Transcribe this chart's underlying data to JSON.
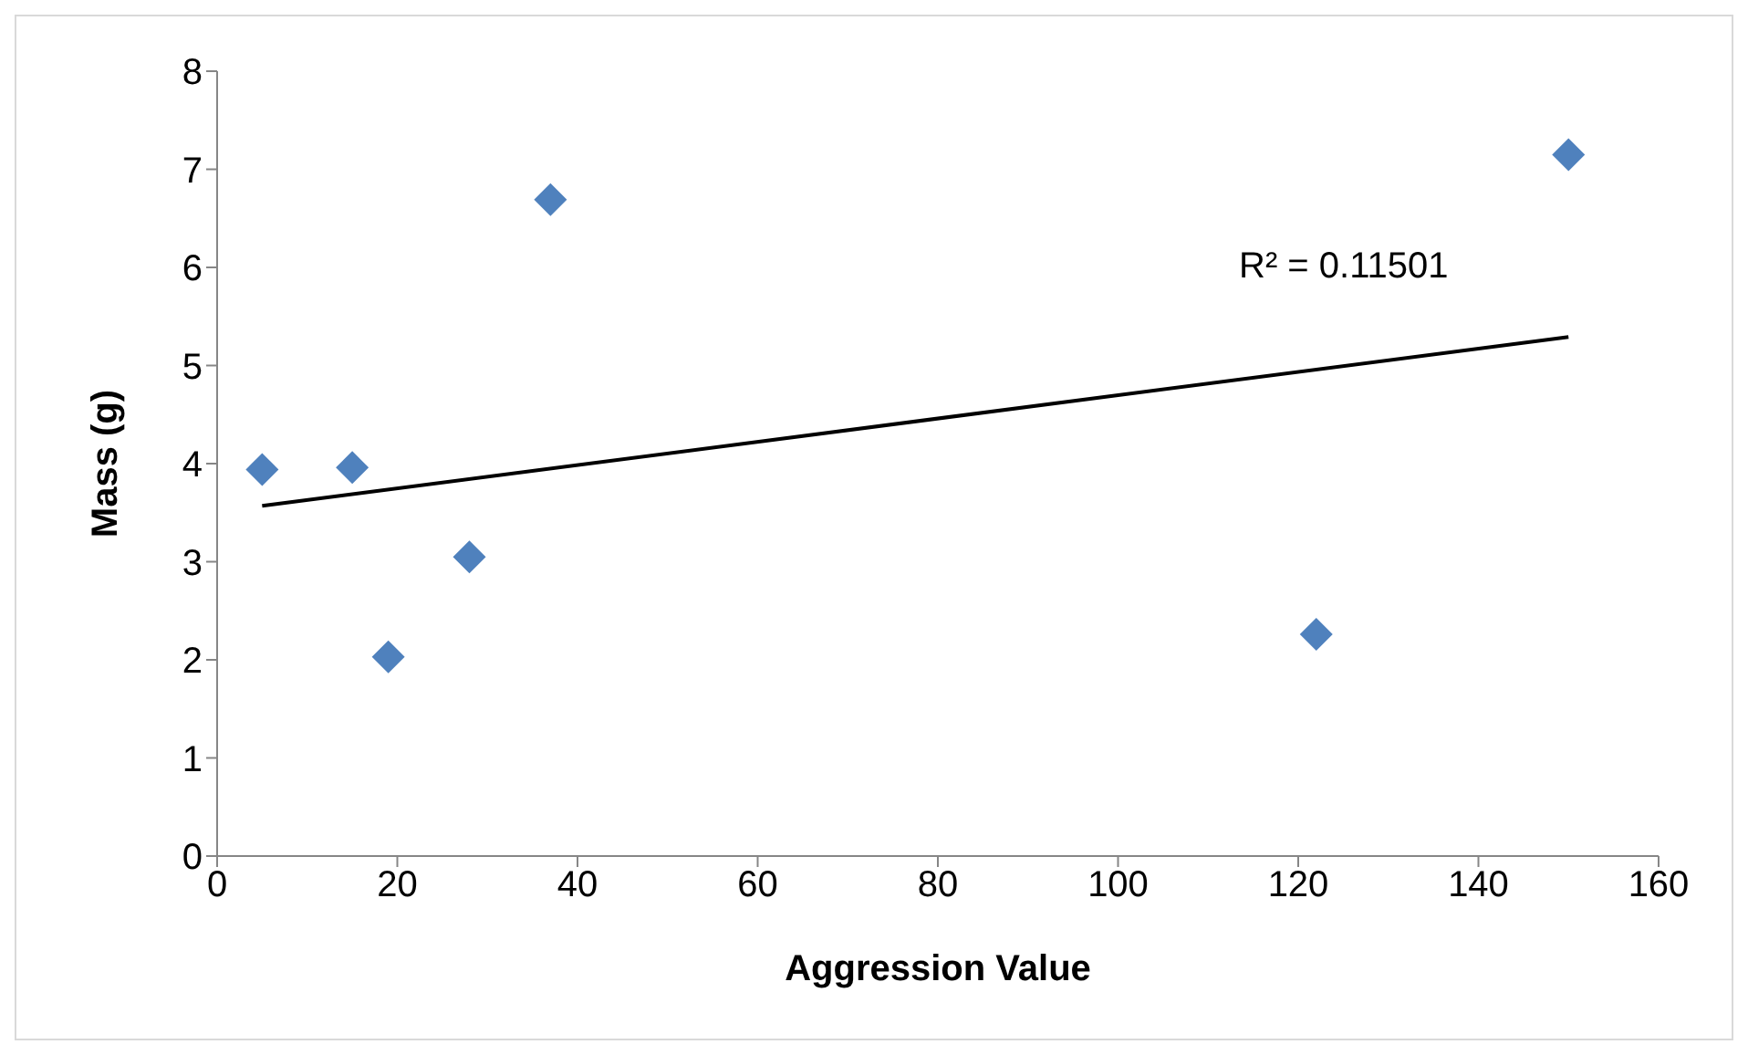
{
  "chart_data": {
    "type": "scatter",
    "xlabel": "Aggression Value",
    "ylabel": "Mass (g)",
    "xlim": [
      0,
      160
    ],
    "xticks": [
      0,
      20,
      40,
      60,
      80,
      100,
      120,
      140,
      160
    ],
    "ylim": [
      0,
      8
    ],
    "yticks": [
      0,
      1,
      2,
      3,
      4,
      5,
      6,
      7,
      8
    ],
    "grid": false,
    "marker": "diamond",
    "annotations": [
      "R² = 0.11501"
    ],
    "series": [
      {
        "color": "#4f81bd",
        "x": [
          5,
          15,
          19,
          28,
          37,
          122,
          150
        ],
        "values": [
          3.94,
          3.96,
          2.03,
          3.05,
          6.69,
          2.26,
          7.15
        ]
      },
      {
        "type": "line",
        "color": "#000000",
        "x": [
          5,
          150
        ],
        "values": [
          3.57,
          5.29
        ],
        "marker": "none",
        "line_style": "solid"
      }
    ]
  }
}
